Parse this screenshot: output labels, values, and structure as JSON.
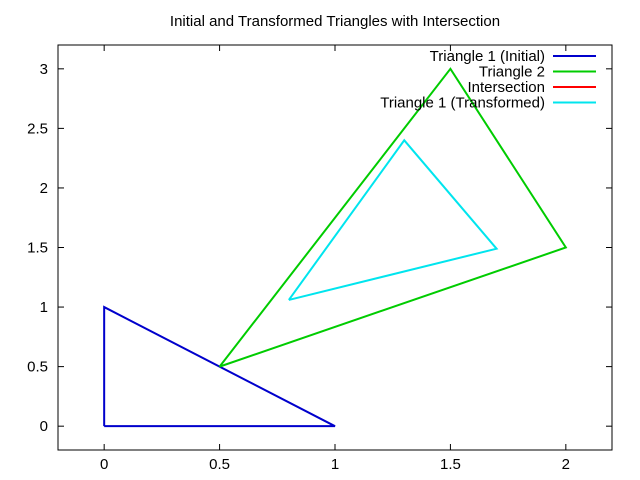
{
  "chart_data": {
    "type": "line",
    "title": "Initial and Transformed Triangles with Intersection",
    "xlabel": "",
    "ylabel": "",
    "xlim": [
      -0.2,
      2.2
    ],
    "ylim": [
      -0.2,
      3.2
    ],
    "xticks": [
      0,
      0.5,
      1,
      1.5,
      2
    ],
    "xtick_labels": [
      "0",
      "0.5",
      "1",
      "1.5",
      "2"
    ],
    "yticks": [
      0,
      0.5,
      1,
      1.5,
      2,
      2.5,
      3
    ],
    "ytick_labels": [
      "0",
      "0.5",
      "1",
      "1.5",
      "2",
      "2.5",
      "3"
    ],
    "grid": false,
    "legend_position": "top-right",
    "series": [
      {
        "name": "Triangle 1 (Initial)",
        "color": "#0000cc",
        "x": [
          0,
          1,
          0,
          0
        ],
        "y": [
          0,
          0,
          1,
          0
        ]
      },
      {
        "name": "Triangle 2",
        "color": "#00cc00",
        "x": [
          0.5,
          1.5,
          2,
          0.5
        ],
        "y": [
          0.5,
          3,
          1.5,
          0.5
        ]
      },
      {
        "name": "Intersection",
        "color": "#ff0000",
        "x": [],
        "y": []
      },
      {
        "name": "Triangle 1 (Transformed)",
        "color": "#00e5ee",
        "x": [
          0.8,
          1.3,
          1.7,
          0.8
        ],
        "y": [
          1.06,
          2.4,
          1.49,
          1.06
        ]
      }
    ]
  }
}
